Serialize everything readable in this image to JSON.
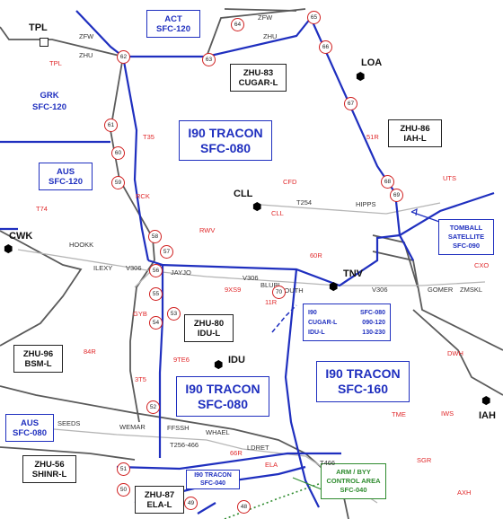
{
  "airspace_boxes": {
    "act": [
      "ACT",
      "SFC-120"
    ],
    "grk": [
      "GRK",
      "SFC-120"
    ],
    "aus_north": [
      "AUS",
      "SFC-120"
    ],
    "i90_tracon_main": [
      "I90 TRACON",
      "SFC-080"
    ],
    "zhu83": [
      "ZHU-83",
      "CUGAR-L"
    ],
    "zhu86": [
      "ZHU-86",
      "IAH-L"
    ],
    "tomball": [
      "TOMBALL",
      "SATELLITE",
      "SFC-090"
    ],
    "zhu80": [
      "ZHU-80",
      "IDU-L"
    ],
    "i90_tracon_south": [
      "I90 TRACON",
      "SFC-080"
    ],
    "i90_tracon_east": [
      "I90 TRACON",
      "SFC-160"
    ],
    "zhu96": [
      "ZHU-96",
      "BSM-L"
    ],
    "aus_south": [
      "AUS",
      "SFC-080"
    ],
    "zhu56": [
      "ZHU-56",
      "SHINR-L"
    ],
    "zhu87": [
      "ZHU-87",
      "ELA-L"
    ],
    "i90_tracon_small": [
      "I90 TRACON",
      "SFC-040"
    ],
    "arm_byy": [
      "ARM / BYY",
      "CONTROL AREA",
      "SFC-040"
    ]
  },
  "altitude_table": {
    "rows": [
      {
        "name": "I90",
        "alt": "SFC-080"
      },
      {
        "name": "CUGAR-L",
        "alt": "090-120"
      },
      {
        "name": "IDU-L",
        "alt": "130-230"
      }
    ]
  },
  "navaids": [
    "TPL",
    "LOA",
    "CLL",
    "CWK",
    "TNV",
    "IDU",
    "IAH"
  ],
  "airway_labels": [
    "ZFW",
    "ZHU",
    "ZFW",
    "ZHU",
    "T254",
    "HIPPS",
    "HOOKK",
    "ILEXY",
    "V306",
    "JAYJO",
    "V306",
    "BLUBL",
    "COUTH",
    "V306",
    "GOMER",
    "ZMSKL",
    "SEEDS",
    "WEMAR",
    "FFSSH",
    "WHAEL",
    "T256-466",
    "LDRET",
    "T466"
  ],
  "airports": [
    "TPL",
    "T35",
    "51R",
    "RCK",
    "CFD",
    "UTS",
    "T74",
    "CLL",
    "RWV",
    "60R",
    "CXO",
    "9XS9",
    "11R",
    "GYB",
    "84R",
    "9TE6",
    "DWH",
    "3T5",
    "TME",
    "IWS",
    "66R",
    "ELA",
    "SGR",
    "AXH"
  ],
  "boundary_points": [
    "64",
    "65",
    "62",
    "63",
    "66",
    "67",
    "61",
    "60",
    "68",
    "69",
    "59",
    "58",
    "57",
    "56",
    "70",
    "55",
    "53",
    "54",
    "52",
    "51",
    "50",
    "49",
    "48"
  ],
  "colors": {
    "airspace": "#1f2fbf",
    "boundary": "#555555",
    "airport": "#e0292b",
    "airway": "#aaaaaa",
    "arm_area": "#2e8b2e"
  }
}
